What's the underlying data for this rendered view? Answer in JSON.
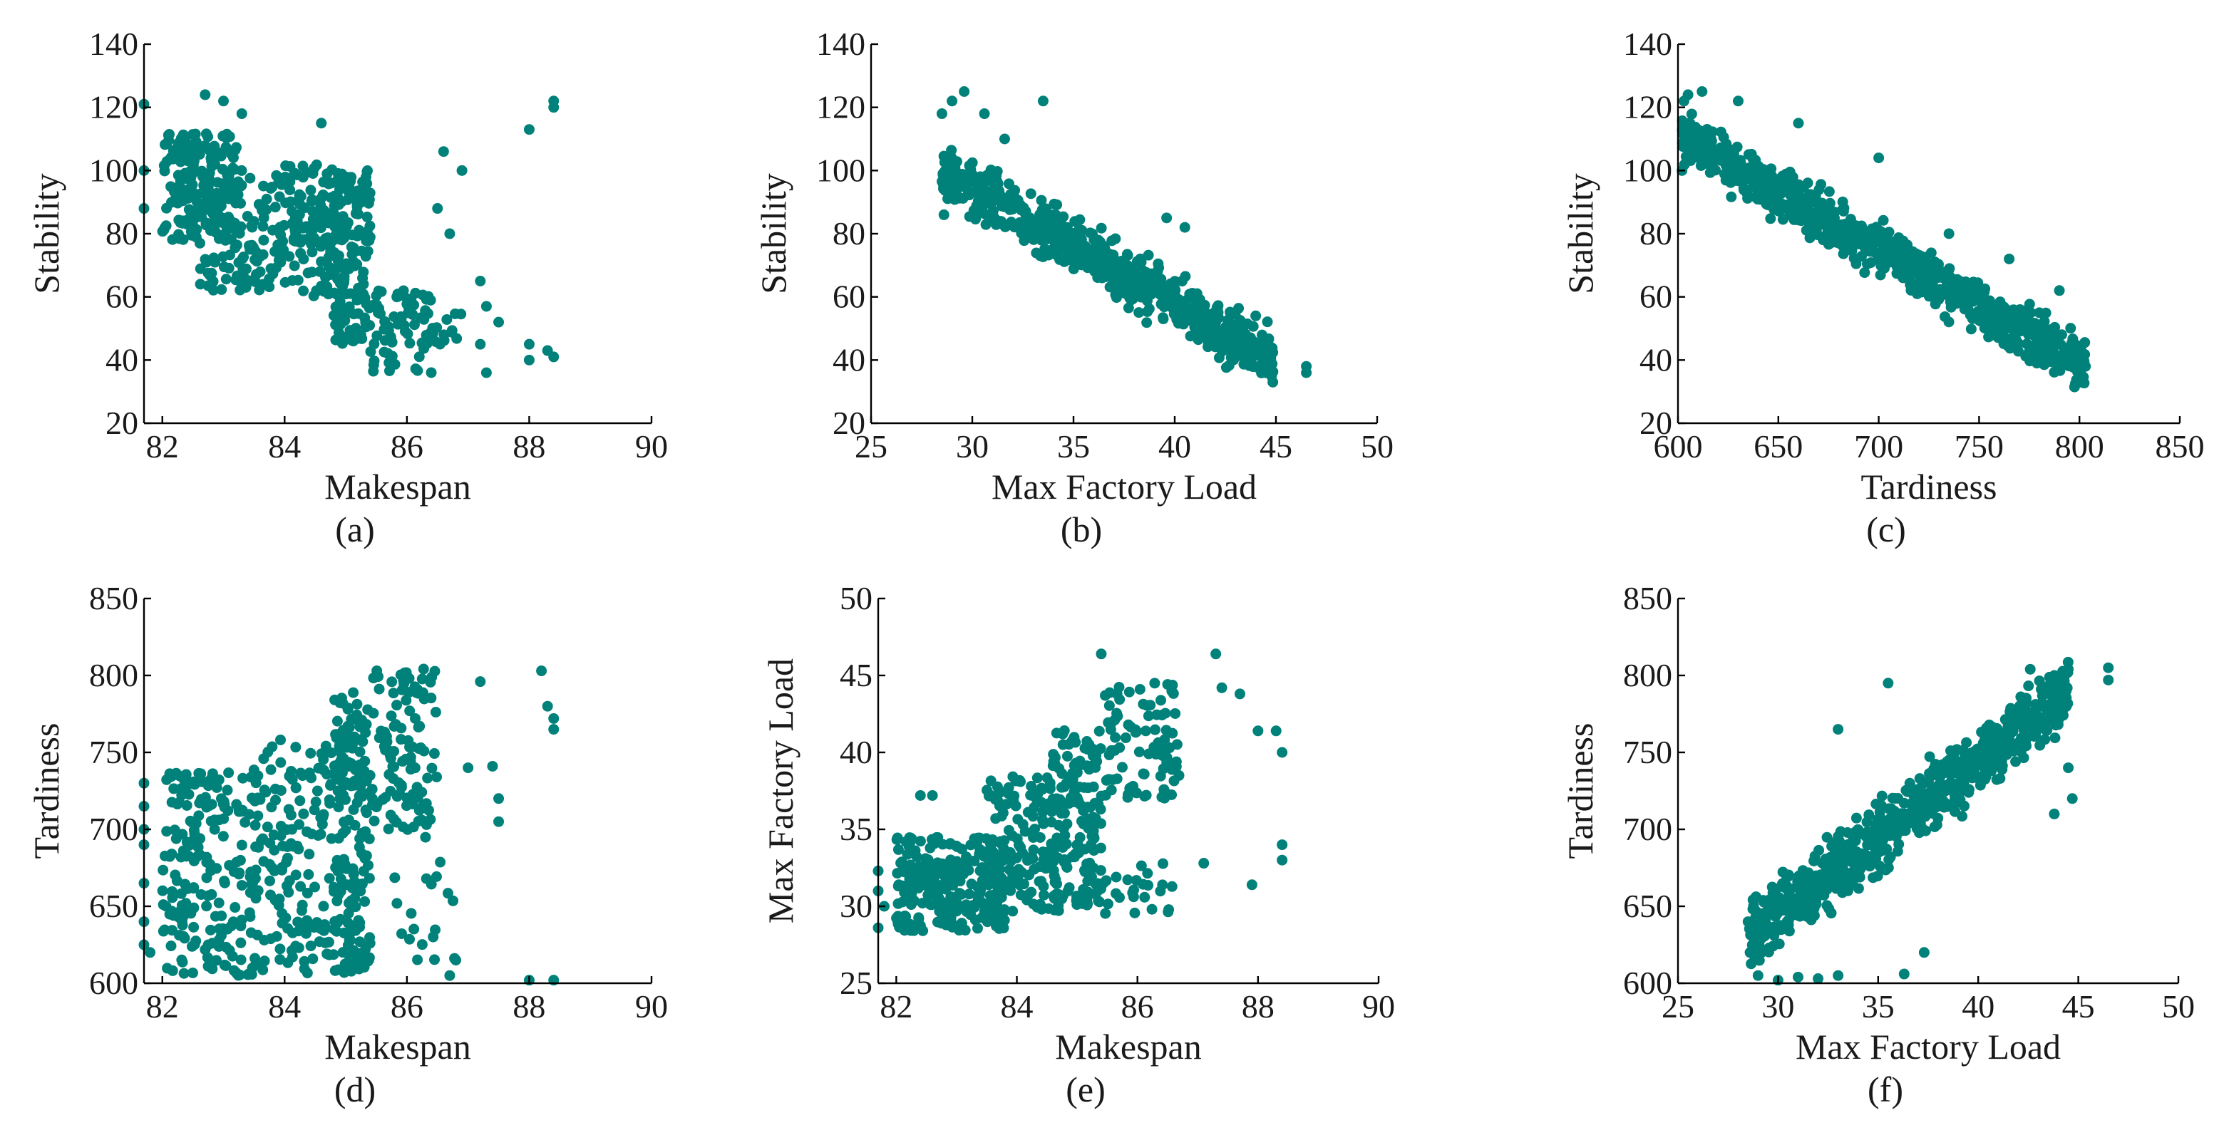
{
  "figure": {
    "marker_color": "#00817a"
  },
  "chart_data": [
    {
      "type": "scatter",
      "panel": "(a)",
      "xlabel": "Makespan",
      "ylabel": "Stability",
      "xlim": [
        81.7,
        90
      ],
      "ylim": [
        20,
        140
      ],
      "xticks": [
        82,
        84,
        86,
        88,
        90
      ],
      "yticks": [
        20,
        40,
        60,
        80,
        100,
        120,
        140
      ],
      "clusters": [
        {
          "x": [
            82.0,
            83.3
          ],
          "y": [
            78,
            112
          ],
          "n": 160
        },
        {
          "x": [
            82.6,
            83.8
          ],
          "y": [
            62,
            98
          ],
          "n": 110
        },
        {
          "x": [
            83.8,
            84.8
          ],
          "y": [
            60,
            102
          ],
          "n": 130
        },
        {
          "x": [
            84.8,
            85.4
          ],
          "y": [
            45,
            100
          ],
          "n": 160
        },
        {
          "x": [
            85.4,
            86.4
          ],
          "y": [
            36,
            62
          ],
          "n": 70
        },
        {
          "x": [
            86.3,
            86.9
          ],
          "y": [
            45,
            55
          ],
          "n": 15
        }
      ],
      "points": [
        [
          81.7,
          121
        ],
        [
          81.7,
          100
        ],
        [
          81.7,
          88
        ],
        [
          82.7,
          124
        ],
        [
          83.0,
          122
        ],
        [
          83.3,
          118
        ],
        [
          84.6,
          115
        ],
        [
          86.6,
          106
        ],
        [
          86.5,
          88
        ],
        [
          86.9,
          100
        ],
        [
          86.7,
          80
        ],
        [
          87.2,
          65
        ],
        [
          87.3,
          57
        ],
        [
          87.5,
          52
        ],
        [
          87.2,
          45
        ],
        [
          87.3,
          36
        ],
        [
          88.0,
          113
        ],
        [
          88.4,
          122
        ],
        [
          88.4,
          120
        ],
        [
          88.0,
          45
        ],
        [
          88.3,
          43
        ],
        [
          88.0,
          40
        ],
        [
          88.4,
          41
        ]
      ]
    },
    {
      "type": "scatter",
      "panel": "(b)",
      "xlabel": "Max Factory Load",
      "ylabel": "Stability",
      "xlim": [
        25,
        50
      ],
      "ylim": [
        20,
        140
      ],
      "xticks": [
        25,
        30,
        35,
        40,
        45,
        50
      ],
      "yticks": [
        20,
        40,
        60,
        80,
        100,
        120,
        140
      ],
      "trend": {
        "x0": 28.5,
        "x1": 45.0,
        "y0": 100,
        "y1": 40,
        "spread": 13
      },
      "n": 650,
      "points": [
        [
          28.5,
          118
        ],
        [
          29.0,
          122
        ],
        [
          29.6,
          125
        ],
        [
          30.6,
          118
        ],
        [
          33.5,
          122
        ],
        [
          31.6,
          110
        ],
        [
          38.0,
          68
        ],
        [
          39.6,
          85
        ],
        [
          44.0,
          54
        ],
        [
          46.5,
          38
        ],
        [
          46.5,
          36
        ],
        [
          44.5,
          36
        ],
        [
          40.5,
          82
        ],
        [
          28.6,
          86
        ]
      ]
    },
    {
      "type": "scatter",
      "panel": "(c)",
      "xlabel": "Tardiness",
      "ylabel": "Stability",
      "xlim": [
        600,
        850
      ],
      "ylim": [
        20,
        140
      ],
      "xticks": [
        600,
        650,
        700,
        750,
        800,
        850
      ],
      "yticks": [
        20,
        40,
        60,
        80,
        100,
        120,
        140
      ],
      "trend": {
        "x0": 602,
        "x1": 803,
        "y0": 110,
        "y1": 38,
        "spread": 12
      },
      "n": 800,
      "points": [
        [
          605,
          124
        ],
        [
          603,
          122
        ],
        [
          612,
          125
        ],
        [
          630,
          122
        ],
        [
          660,
          115
        ],
        [
          700,
          104
        ],
        [
          735,
          80
        ],
        [
          765,
          72
        ],
        [
          790,
          62
        ],
        [
          780,
          55
        ],
        [
          803,
          38
        ],
        [
          800,
          36
        ],
        [
          603,
          114
        ],
        [
          602,
          100
        ]
      ]
    },
    {
      "type": "scatter",
      "panel": "(d)",
      "xlabel": "Makespan",
      "ylabel": "Tardiness",
      "xlim": [
        81.7,
        90
      ],
      "ylim": [
        600,
        850
      ],
      "xticks": [
        82,
        84,
        86,
        88,
        90
      ],
      "yticks": [
        600,
        650,
        700,
        750,
        800,
        850
      ],
      "clusters": [
        {
          "x": [
            82.0,
            83.5
          ],
          "y": [
            605,
            740
          ],
          "n": 200
        },
        {
          "x": [
            83.5,
            84.8
          ],
          "y": [
            605,
            760
          ],
          "n": 150
        },
        {
          "x": [
            84.8,
            85.4
          ],
          "y": [
            605,
            790
          ],
          "n": 180
        },
        {
          "x": [
            85.4,
            86.5
          ],
          "y": [
            700,
            805
          ],
          "n": 110
        },
        {
          "x": [
            85.8,
            86.8
          ],
          "y": [
            610,
            700
          ],
          "n": 20
        }
      ],
      "points": [
        [
          81.7,
          730
        ],
        [
          81.7,
          715
        ],
        [
          81.7,
          700
        ],
        [
          81.7,
          690
        ],
        [
          81.7,
          665
        ],
        [
          81.7,
          640
        ],
        [
          81.7,
          625
        ],
        [
          81.8,
          620
        ],
        [
          87.2,
          796
        ],
        [
          87.0,
          740
        ],
        [
          87.4,
          741
        ],
        [
          87.5,
          720
        ],
        [
          87.5,
          705
        ],
        [
          88.2,
          803
        ],
        [
          88.3,
          780
        ],
        [
          88.4,
          765
        ],
        [
          88.4,
          772
        ],
        [
          88.0,
          602
        ],
        [
          88.4,
          602
        ],
        [
          86.7,
          605
        ],
        [
          86.8,
          615
        ]
      ]
    },
    {
      "type": "scatter",
      "panel": "(e)",
      "xlabel": "Makespan",
      "ylabel": "Max Factory Load",
      "xlim": [
        81.7,
        90
      ],
      "ylim": [
        25,
        50
      ],
      "xticks": [
        82,
        84,
        86,
        88,
        90
      ],
      "yticks": [
        25,
        30,
        35,
        40,
        45,
        50
      ],
      "clusters": [
        {
          "x": [
            82.0,
            83.8
          ],
          "y": [
            28.4,
            34.5
          ],
          "n": 260
        },
        {
          "x": [
            83.5,
            84.8
          ],
          "y": [
            29.5,
            38.5
          ],
          "n": 150
        },
        {
          "x": [
            84.6,
            85.4
          ],
          "y": [
            30.0,
            41.5
          ],
          "n": 140
        },
        {
          "x": [
            85.4,
            86.7
          ],
          "y": [
            37.0,
            44.5
          ],
          "n": 90
        },
        {
          "x": [
            85.4,
            86.6
          ],
          "y": [
            29.5,
            33.5
          ],
          "n": 25
        }
      ],
      "points": [
        [
          81.7,
          32.3
        ],
        [
          81.7,
          31.0
        ],
        [
          81.8,
          30.0
        ],
        [
          81.7,
          28.6
        ],
        [
          82.4,
          37.2
        ],
        [
          82.6,
          37.2
        ],
        [
          85.4,
          46.4
        ],
        [
          87.3,
          46.4
        ],
        [
          87.4,
          44.2
        ],
        [
          87.7,
          43.8
        ],
        [
          87.1,
          32.8
        ],
        [
          87.9,
          31.4
        ],
        [
          88.0,
          41.4
        ],
        [
          88.3,
          41.4
        ],
        [
          88.4,
          40.0
        ],
        [
          88.4,
          34.0
        ],
        [
          88.4,
          33.0
        ]
      ]
    },
    {
      "type": "scatter",
      "panel": "(f)",
      "xlabel": "Max Factory Load",
      "ylabel": "Tardiness",
      "xlim": [
        25,
        50
      ],
      "ylim": [
        600,
        850
      ],
      "xticks": [
        25,
        30,
        35,
        40,
        45,
        50
      ],
      "yticks": [
        600,
        650,
        700,
        750,
        800,
        850
      ],
      "trend": {
        "x0": 28.5,
        "x1": 44.5,
        "y0": 630,
        "y1": 790,
        "spread": 32
      },
      "n": 750,
      "points": [
        [
          28.5,
          640
        ],
        [
          28.6,
          620
        ],
        [
          29.0,
          605
        ],
        [
          30.0,
          602
        ],
        [
          31.0,
          604
        ],
        [
          32.0,
          603
        ],
        [
          33.0,
          605
        ],
        [
          46.5,
          805
        ],
        [
          46.5,
          797
        ],
        [
          44.5,
          804
        ],
        [
          43.8,
          800
        ],
        [
          42.6,
          804
        ],
        [
          35.5,
          795
        ],
        [
          33.0,
          765
        ],
        [
          37.3,
          620
        ],
        [
          36.3,
          606
        ],
        [
          44.7,
          720
        ],
        [
          44.5,
          740
        ],
        [
          43.8,
          710
        ]
      ]
    }
  ]
}
